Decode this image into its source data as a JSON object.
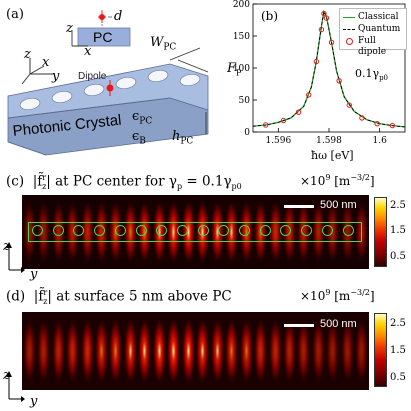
{
  "panel_a": {
    "label": "(a)",
    "inset_pc": "PC",
    "inset_d": "d",
    "inset_x": "x",
    "inset_z": "z",
    "axis_z": "z",
    "axis_x": "x",
    "axis_y": "y",
    "dipole": "Dipole",
    "w_pc": "W",
    "w_pc_sub": "PC",
    "eps_pc": "ϵ",
    "eps_pc_sub": "PC",
    "eps_b": "ϵ",
    "eps_b_sub": "B",
    "h_pc": "h",
    "h_pc_sub": "PC",
    "slab_text": "Photonic Crystal"
  },
  "panel_b": {
    "label": "(b)",
    "legend": [
      "Classical",
      "Quantum",
      "Full dipole"
    ],
    "annotation": "0.1γ",
    "annotation_sub": "p0",
    "xlabel": "ħω [eV]",
    "ylabel": "F",
    "ylabel_sub": "P",
    "xticks": [
      "1.596",
      "1.598",
      "1.6"
    ],
    "yticks": [
      "0",
      "50",
      "100",
      "150",
      "200"
    ]
  },
  "panel_c": {
    "label": "(c)",
    "title_lead": "|f̃",
    "title_sup": "r",
    "title_sub": "z",
    "title_tail": "| at PC center for γ",
    "title_gsub": "p",
    "title_end": " = 0.1γ",
    "title_end_sub": "p0",
    "scale_prefix": "×10",
    "scale_exp": "9",
    "unit": "[m",
    "unit_exp": "−3/2",
    "unit_end": "]",
    "scalebar": "500 nm",
    "axis_z": "z",
    "axis_y": "y",
    "cbar_ticks": [
      "2.5",
      "1.5",
      "0.5"
    ]
  },
  "panel_d": {
    "label": "(d)",
    "title_lead": "|f̃",
    "title_sup": "r",
    "title_sub": "z",
    "title_tail": "| at surface 5 nm above PC",
    "scale_prefix": "×10",
    "scale_exp": "9",
    "unit": "[m",
    "unit_exp": "−3/2",
    "unit_end": "]",
    "scalebar": "500 nm",
    "axis_z": "z",
    "axis_y": "y",
    "cbar_ticks": [
      "2.5",
      "1.5",
      "0.5"
    ]
  },
  "chart_data": {
    "type": "line",
    "title": "",
    "xlabel": "ħω [eV]",
    "ylabel": "F_P",
    "xlim": [
      1.595,
      1.601
    ],
    "ylim": [
      0,
      200
    ],
    "annotation": "0.1γp0",
    "series": [
      {
        "name": "Classical",
        "style": "solid",
        "color": "#2ca02c",
        "x": [
          1.595,
          1.5955,
          1.596,
          1.5965,
          1.597,
          1.5973,
          1.5975,
          1.5977,
          1.5978,
          1.5979,
          1.5981,
          1.5983,
          1.5986,
          1.599,
          1.5995,
          1.6,
          1.6005,
          1.601
        ],
        "y": [
          9,
          11,
          15,
          22,
          40,
          70,
          110,
          165,
          188,
          180,
          140,
          95,
          55,
          32,
          19,
          13,
          10,
          8
        ]
      },
      {
        "name": "Quantum",
        "style": "dashed",
        "color": "#000000",
        "x": [
          1.595,
          1.5955,
          1.596,
          1.5965,
          1.597,
          1.5973,
          1.5975,
          1.5977,
          1.5978,
          1.5979,
          1.5981,
          1.5983,
          1.5986,
          1.599,
          1.5995,
          1.6,
          1.6005,
          1.601
        ],
        "y": [
          9,
          11,
          15,
          22,
          40,
          70,
          110,
          165,
          188,
          180,
          140,
          95,
          55,
          32,
          19,
          13,
          10,
          8
        ]
      },
      {
        "name": "Full dipole",
        "style": "markers",
        "color": "#e41a1c",
        "x": [
          1.5955,
          1.5962,
          1.5968,
          1.5972,
          1.5975,
          1.5977,
          1.5978,
          1.5979,
          1.5981,
          1.5984,
          1.5988,
          1.5993,
          1.5999,
          1.6005
        ],
        "y": [
          11,
          18,
          31,
          58,
          110,
          160,
          185,
          178,
          140,
          80,
          42,
          22,
          13,
          10
        ]
      }
    ]
  },
  "colors": {
    "classical": "#2ca02c",
    "quantum": "#000000",
    "dipole_marker": "#e41a1c",
    "slab_top": "#a3b8dc",
    "slab_side": "#8aa0c6",
    "hole": "#f2f5fb",
    "inset_box": "#9aaedc",
    "waveguide_outline": "#4cd64c"
  }
}
